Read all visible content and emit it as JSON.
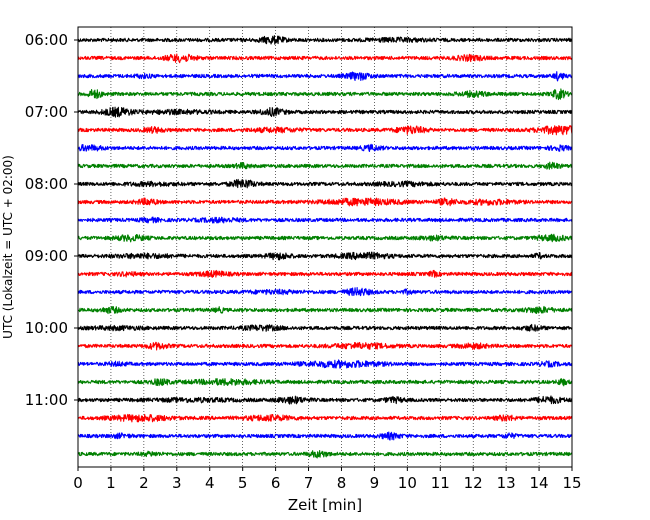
{
  "chart_data": {
    "type": "line",
    "title": "",
    "xlabel": "Zeit  [min]",
    "ylabel": "UTC (Lokalzeit = UTC + 02:00)",
    "xlim": [
      0,
      15
    ],
    "x_ticks": [
      "0",
      "1",
      "2",
      "3",
      "4",
      "5",
      "6",
      "7",
      "8",
      "9",
      "10",
      "11",
      "12",
      "13",
      "14",
      "15"
    ],
    "y_tick_labels": [
      "06:00",
      "07:00",
      "08:00",
      "09:00",
      "10:00",
      "11:00"
    ],
    "y_tick_rows": [
      0,
      4,
      8,
      12,
      16,
      20
    ],
    "grid": "vertical dotted lines at each minute",
    "row_colors": [
      "#000000",
      "#ff0000",
      "#0000ff",
      "#008000"
    ],
    "rows": [
      {
        "start": "06:00",
        "bursts": [
          [
            5.9,
            0.25,
            3.0
          ],
          [
            9.7,
            0.6,
            1.2
          ]
        ]
      },
      {
        "start": "06:15",
        "bursts": [
          [
            3.1,
            0.3,
            3.0
          ],
          [
            11.9,
            0.3,
            2.0
          ]
        ]
      },
      {
        "start": "06:30",
        "bursts": [
          [
            8.5,
            0.25,
            3.0
          ],
          [
            2.0,
            0.2,
            1.2
          ],
          [
            14.6,
            0.1,
            3.5
          ]
        ]
      },
      {
        "start": "06:45",
        "bursts": [
          [
            0.5,
            0.15,
            3.5
          ],
          [
            12.0,
            0.3,
            2.0
          ],
          [
            14.6,
            0.15,
            4.0
          ]
        ]
      },
      {
        "start": "07:00",
        "bursts": [
          [
            1.2,
            0.3,
            3.5
          ],
          [
            5.9,
            0.25,
            3.0
          ],
          [
            3.0,
            0.7,
            1.2
          ]
        ]
      },
      {
        "start": "07:15",
        "bursts": [
          [
            10.1,
            0.3,
            3.0
          ],
          [
            14.7,
            0.5,
            3.5
          ],
          [
            2.3,
            0.2,
            2.0
          ],
          [
            6.0,
            0.5,
            1.5
          ]
        ]
      },
      {
        "start": "07:30",
        "bursts": [
          [
            0.3,
            0.3,
            2.0
          ],
          [
            8.9,
            0.2,
            2.0
          ],
          [
            14.6,
            0.2,
            1.8
          ]
        ]
      },
      {
        "start": "07:45",
        "bursts": [
          [
            5.0,
            0.15,
            2.0
          ],
          [
            14.4,
            0.15,
            2.5
          ]
        ]
      },
      {
        "start": "08:00",
        "bursts": [
          [
            5.0,
            0.25,
            3.5
          ],
          [
            2.2,
            0.5,
            1.2
          ],
          [
            9.9,
            0.6,
            1.2
          ]
        ]
      },
      {
        "start": "08:15",
        "bursts": [
          [
            2.1,
            0.2,
            2.5
          ],
          [
            8.6,
            0.8,
            2.5
          ],
          [
            11.2,
            0.2,
            2.5
          ],
          [
            12.5,
            0.5,
            1.8
          ]
        ]
      },
      {
        "start": "08:30",
        "bursts": [
          [
            4.3,
            0.4,
            1.5
          ],
          [
            2.2,
            0.2,
            1.4
          ]
        ]
      },
      {
        "start": "08:45",
        "bursts": [
          [
            1.6,
            0.3,
            2.2
          ],
          [
            14.4,
            0.3,
            2.2
          ],
          [
            10.8,
            0.3,
            1.4
          ]
        ]
      },
      {
        "start": "09:00",
        "bursts": [
          [
            6.1,
            0.25,
            2.5
          ],
          [
            8.7,
            0.5,
            2.5
          ],
          [
            2.0,
            0.6,
            1.5
          ],
          [
            14.0,
            0.1,
            1.8
          ]
        ]
      },
      {
        "start": "09:15",
        "bursts": [
          [
            4.1,
            0.3,
            2.0
          ],
          [
            10.8,
            0.1,
            2.0
          ],
          [
            1.5,
            0.2,
            1.3
          ]
        ]
      },
      {
        "start": "09:30",
        "bursts": [
          [
            8.5,
            0.25,
            3.0
          ],
          [
            10.0,
            0.1,
            1.5
          ],
          [
            6.0,
            0.5,
            1.2
          ]
        ]
      },
      {
        "start": "09:45",
        "bursts": [
          [
            1.0,
            0.2,
            2.2
          ],
          [
            4.3,
            0.1,
            1.8
          ],
          [
            14.0,
            0.3,
            2.2
          ]
        ]
      },
      {
        "start": "10:00",
        "bursts": [
          [
            5.6,
            0.4,
            1.8
          ],
          [
            13.8,
            0.2,
            2.0
          ],
          [
            1.2,
            0.5,
            1.2
          ]
        ]
      },
      {
        "start": "10:15",
        "bursts": [
          [
            2.4,
            0.2,
            2.5
          ],
          [
            8.6,
            0.6,
            2.0
          ],
          [
            12.0,
            0.3,
            1.8
          ]
        ]
      },
      {
        "start": "10:30",
        "bursts": [
          [
            8.0,
            0.8,
            2.5
          ],
          [
            1.2,
            0.2,
            1.3
          ],
          [
            14.3,
            0.2,
            1.5
          ]
        ]
      },
      {
        "start": "10:45",
        "bursts": [
          [
            2.5,
            0.2,
            2.2
          ],
          [
            4.5,
            0.7,
            2.0
          ],
          [
            14.7,
            0.1,
            2.5
          ]
        ]
      },
      {
        "start": "11:00",
        "bursts": [
          [
            6.5,
            0.3,
            2.5
          ],
          [
            9.6,
            0.2,
            2.0
          ],
          [
            14.3,
            0.3,
            2.5
          ],
          [
            3.5,
            0.8,
            1.2
          ]
        ]
      },
      {
        "start": "11:15",
        "bursts": [
          [
            1.9,
            0.6,
            2.5
          ],
          [
            5.8,
            0.5,
            2.0
          ],
          [
            13.0,
            0.2,
            2.0
          ]
        ]
      },
      {
        "start": "11:30",
        "bursts": [
          [
            9.5,
            0.2,
            2.5
          ],
          [
            1.3,
            0.2,
            1.4
          ],
          [
            13.1,
            0.15,
            1.6
          ]
        ]
      },
      {
        "start": "11:45",
        "bursts": [
          [
            7.3,
            0.2,
            2.5
          ],
          [
            2.2,
            0.2,
            1.3
          ]
        ]
      }
    ]
  }
}
